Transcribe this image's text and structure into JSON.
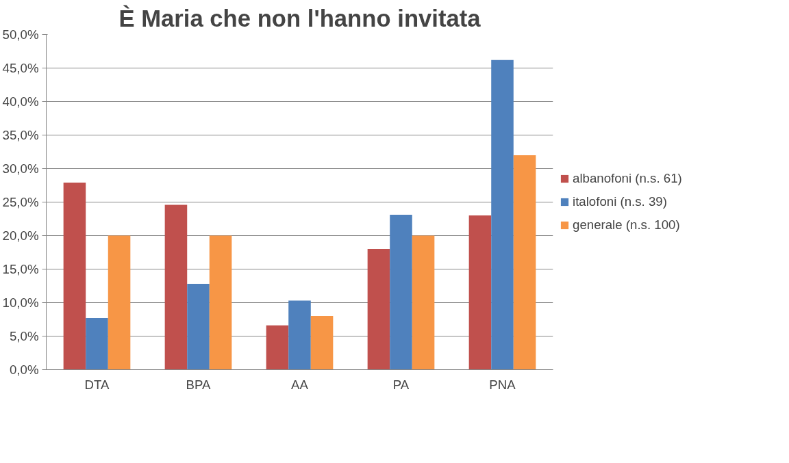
{
  "chart_data": {
    "type": "bar",
    "title": "È Maria che non l'hanno invitata",
    "categories": [
      "DTA",
      "BPA",
      "AA",
      "PA",
      "PNA"
    ],
    "series": [
      {
        "name": "albanofoni (n.s. 61)",
        "color": "#c0504d",
        "values": [
          27.9,
          24.6,
          6.6,
          18.0,
          23.0
        ]
      },
      {
        "name": "italofoni (n.s. 39)",
        "color": "#4f81bd",
        "values": [
          7.7,
          12.8,
          10.3,
          23.1,
          46.2
        ]
      },
      {
        "name": "generale (n.s. 100)",
        "color": "#f79646",
        "values": [
          20.0,
          20.0,
          8.0,
          20.0,
          32.0
        ]
      }
    ],
    "ylim": [
      0,
      50
    ],
    "yticks": [
      {
        "value": 0,
        "label": "0,0%"
      },
      {
        "value": 5,
        "label": "5,0%"
      },
      {
        "value": 10,
        "label": "10,0%"
      },
      {
        "value": 15,
        "label": "15,0%"
      },
      {
        "value": 20,
        "label": "20,0%"
      },
      {
        "value": 25,
        "label": "25,0%"
      },
      {
        "value": 30,
        "label": "30,0%"
      },
      {
        "value": 35,
        "label": "35,0%"
      },
      {
        "value": 40,
        "label": "40,0%"
      },
      {
        "value": 45,
        "label": "45,0%"
      },
      {
        "value": 50,
        "label": "50,0%"
      }
    ],
    "grid": "y",
    "legend": "right"
  }
}
